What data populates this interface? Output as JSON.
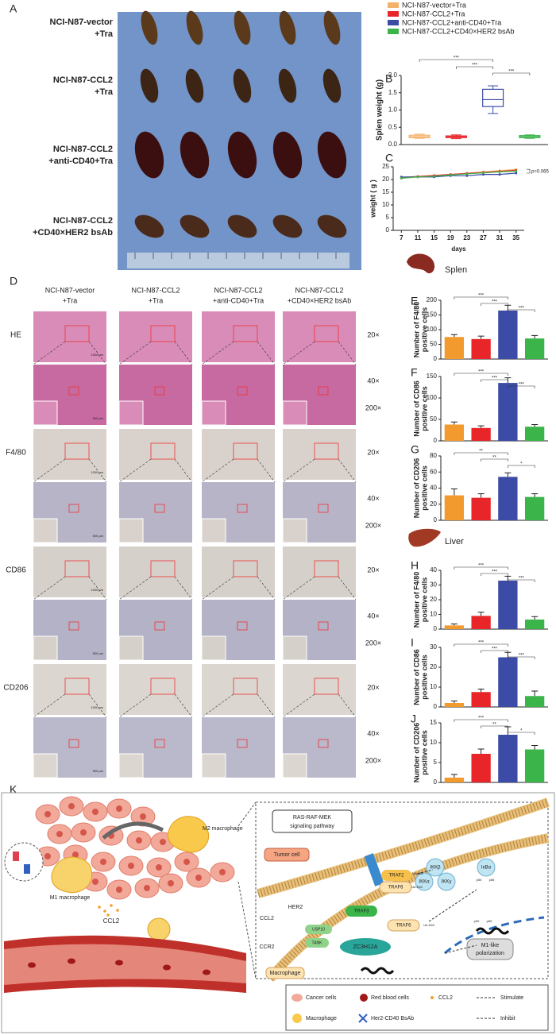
{
  "panel_labels": [
    "A",
    "B",
    "C",
    "D",
    "E",
    "F",
    "G",
    "H",
    "I",
    "J",
    "K"
  ],
  "panel_a": {
    "rows": [
      [
        "NCI-N87-vector",
        "+Tra"
      ],
      [
        "NCI-N87-CCL2",
        "+Tra"
      ],
      [
        "NCI-N87-CCL2",
        "+anti-CD40+Tra"
      ],
      [
        "NCI-N87-CCL2",
        "+CD40×HER2 bsAb"
      ]
    ]
  },
  "organs": {
    "spleen": "Splen",
    "liver": "Liver"
  },
  "panel_d": {
    "columns": [
      [
        "NCI-N87-vector",
        "+Tra"
      ],
      [
        "NCI-N87-CCL2",
        "+Tra"
      ],
      [
        "NCI-N87-CCL2",
        "+anti-CD40+Tra"
      ],
      [
        "NCI-N87-CCL2",
        "+CD40×HER2 bsAb"
      ]
    ],
    "rows": [
      "HE",
      "F4/80",
      "CD86",
      "CD206"
    ],
    "magnifications": [
      "20×",
      "40×",
      "200×"
    ],
    "scale_bars": [
      "1000 µm",
      "500 µm"
    ]
  },
  "chart_data": [
    {
      "type": "box",
      "ylabel": "Splen weight (g)",
      "ylim": [
        0,
        2.0
      ],
      "yticks": [
        {
          "value": 0,
          "label": "0.0"
        },
        {
          "value": 0.5,
          "label": "0.5"
        },
        {
          "value": 1.0,
          "label": "1.0"
        },
        {
          "value": 1.5,
          "label": "1.5"
        },
        {
          "value": 2.0,
          "label": "2.0"
        }
      ],
      "significance": [
        "***",
        "***",
        "***"
      ],
      "series": [
        {
          "name": "NCI-N87-vector+Tra",
          "color": "#f5b06a",
          "values": [
            0.18,
            0.2,
            0.23,
            0.27,
            0.3
          ]
        },
        {
          "name": "NCI-N87-CCL2+Tra",
          "color": "#e8262a",
          "values": [
            0.17,
            0.2,
            0.23,
            0.25,
            0.28
          ]
        },
        {
          "name": "NCI-N87-CCL2+anti-CD40+Tra",
          "color": "#3b4ba6",
          "values": [
            0.9,
            1.1,
            1.3,
            1.6,
            1.7
          ]
        },
        {
          "name": "NCI-N87-CCL2+CD40×HER2 bsAb",
          "color": "#3bb44a",
          "values": [
            0.18,
            0.2,
            0.23,
            0.26,
            0.28
          ]
        }
      ]
    },
    {
      "type": "line",
      "xlabel": "days",
      "ylabel": "weight ( g )",
      "annotation": "p=0.065",
      "x": [
        7,
        11,
        15,
        19,
        23,
        27,
        31,
        35
      ],
      "xlim": [
        5,
        37
      ],
      "xticks": [
        7,
        11,
        15,
        19,
        23,
        27,
        31,
        35
      ],
      "ylim": [
        0,
        25
      ],
      "yticks": [
        0,
        5,
        10,
        15,
        20,
        25
      ],
      "series": [
        {
          "color": "#f5b06a",
          "values": [
            20.5,
            21,
            21.5,
            22,
            22.5,
            23,
            23.5,
            24
          ]
        },
        {
          "color": "#e8262a",
          "values": [
            20.8,
            21.2,
            21.6,
            22,
            22.4,
            22.8,
            23.2,
            23.6
          ]
        },
        {
          "color": "#3b4ba6",
          "values": [
            21,
            21,
            21,
            21.5,
            21.5,
            22,
            22,
            22.5
          ]
        },
        {
          "color": "#3bb44a",
          "values": [
            20.5,
            21,
            21.3,
            21.8,
            22.2,
            22.6,
            23,
            23.3
          ]
        }
      ]
    },
    {
      "type": "bar",
      "ylabel": [
        "Number of F4/80",
        "positive cells"
      ],
      "ylim": [
        0,
        200
      ],
      "yticks": [
        0,
        50,
        100,
        150,
        200
      ],
      "colors": [
        "#f39a2e",
        "#e8262a",
        "#3b4ba6",
        "#3bb44a"
      ],
      "values": [
        75,
        68,
        165,
        70
      ],
      "errors": [
        8,
        10,
        18,
        10
      ],
      "significance": [
        "***",
        "***",
        "***"
      ]
    },
    {
      "type": "bar",
      "ylabel": [
        "Number of CD86",
        "positive cells"
      ],
      "ylim": [
        0,
        150
      ],
      "yticks": [
        0,
        50,
        100,
        150
      ],
      "colors": [
        "#f39a2e",
        "#e8262a",
        "#3b4ba6",
        "#3bb44a"
      ],
      "values": [
        38,
        30,
        135,
        33
      ],
      "errors": [
        6,
        5,
        12,
        5
      ],
      "significance": [
        "***",
        "***",
        "***"
      ]
    },
    {
      "type": "bar",
      "ylabel": [
        "Number of CD206",
        "positive cells"
      ],
      "ylim": [
        0,
        80
      ],
      "yticks": [
        0,
        20,
        40,
        60,
        80
      ],
      "colors": [
        "#f39a2e",
        "#e8262a",
        "#3b4ba6",
        "#3bb44a"
      ],
      "values": [
        31,
        28,
        54,
        29
      ],
      "errors": [
        8,
        5,
        5,
        4
      ],
      "significance": [
        "**",
        "**",
        "*"
      ]
    },
    {
      "type": "bar",
      "ylabel": [
        "Number of F4/80",
        "positive cells"
      ],
      "ylim": [
        0,
        40
      ],
      "yticks": [
        0,
        10,
        20,
        30,
        40
      ],
      "colors": [
        "#f39a2e",
        "#e8262a",
        "#3b4ba6",
        "#3bb44a"
      ],
      "values": [
        2.5,
        9,
        33,
        6.5
      ],
      "errors": [
        1,
        2.5,
        3,
        2
      ],
      "significance": [
        "***",
        "***",
        "***"
      ]
    },
    {
      "type": "bar",
      "ylabel": [
        "Number of CD86",
        "positive cells"
      ],
      "ylim": [
        0,
        30
      ],
      "yticks": [
        0,
        10,
        20,
        30
      ],
      "colors": [
        "#f39a2e",
        "#e8262a",
        "#3b4ba6",
        "#3bb44a"
      ],
      "values": [
        2,
        7.5,
        25,
        5.5
      ],
      "errors": [
        1,
        1.5,
        2.5,
        2.5
      ],
      "significance": [
        "***",
        "***",
        "***"
      ]
    },
    {
      "type": "bar",
      "ylabel": [
        "Number of CD206",
        "positive cells"
      ],
      "ylim": [
        0,
        15
      ],
      "yticks": [
        0,
        5,
        10,
        15
      ],
      "colors": [
        "#f39a2e",
        "#e8262a",
        "#3b4ba6",
        "#3bb44a"
      ],
      "values": [
        1.2,
        7.2,
        12,
        8.3
      ],
      "errors": [
        0.8,
        1.2,
        2,
        1
      ],
      "significance": [
        "***",
        "**",
        "*"
      ]
    }
  ],
  "panel_k": {
    "labels": {
      "m2": "M2 macrophage",
      "m1": "M1 macrophage",
      "ccl2_left": "CCL2",
      "ras": [
        "RAS-RAF-MEK",
        "signaling pathway"
      ],
      "tumor": "Tumor cell",
      "her2": "HER2",
      "traf2": "TRAF2",
      "traf6_a": "TRAF6",
      "ccl2_right": "CCL2",
      "ccr2": "CCR2",
      "traf3": "TRAF3",
      "traf6_b": "TRAF6",
      "usp10": "USP10",
      "tank": "TANK",
      "zc3": "ZC3H12A",
      "ikkb": "IKKβ",
      "ikka": "IKKα",
      "ikkg": "IKKγ",
      "ikba": "IκBα",
      "p50": "p50",
      "p65": "p65",
      "ub": "Ub-K63",
      "m1pol": [
        "M1-like",
        "polarization"
      ],
      "macrophage": "Macrophage"
    },
    "legend": {
      "cancer": "Cancer cells",
      "rbc": "Red blood cells",
      "ccl2": "CCL2",
      "stimulate": "Stimulate",
      "macrophage": "Macrophage",
      "bsab": "Her2-CD40 BsAb",
      "inhibit": "Inhibit"
    }
  }
}
